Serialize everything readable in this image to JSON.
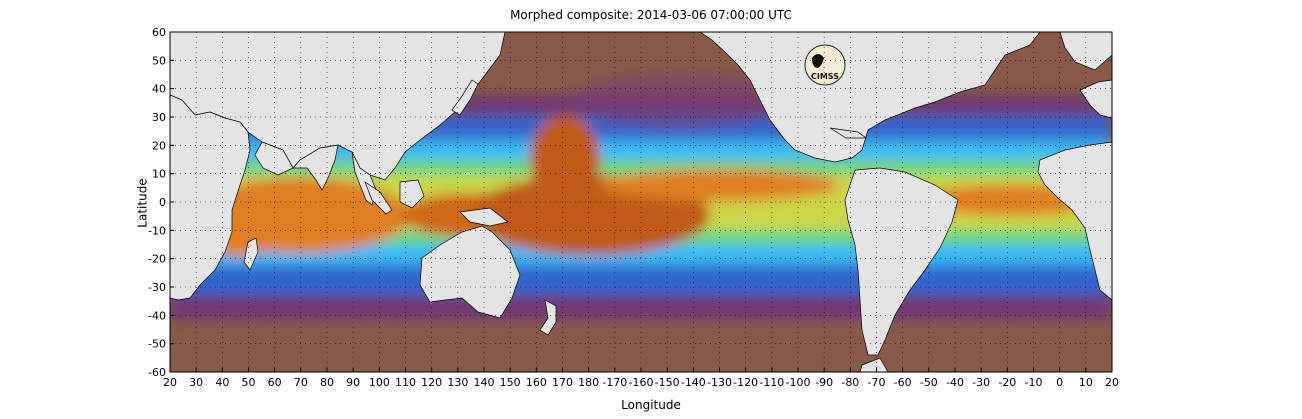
{
  "map": {
    "title": "Morphed composite: 2014-03-06 07:00:00 UTC",
    "xlabel": "Longitude",
    "ylabel": "Latitude",
    "logo_text": "CIMSS",
    "x_ticks": [
      "20",
      "30",
      "40",
      "50",
      "60",
      "70",
      "80",
      "90",
      "100",
      "110",
      "120",
      "130",
      "140",
      "150",
      "160",
      "170",
      "180",
      "-170",
      "-160",
      "-150",
      "-140",
      "-130",
      "-120",
      "-110",
      "-100",
      "-90",
      "-80",
      "-70",
      "-60",
      "-50",
      "-40",
      "-30",
      "-20",
      "-10",
      "0",
      "10",
      "20"
    ],
    "y_ticks": [
      "60",
      "50",
      "40",
      "30",
      "20",
      "10",
      "0",
      "-10",
      "-20",
      "-30",
      "-40",
      "-50",
      "-60"
    ],
    "colors": {
      "land": "#e4e4e4",
      "ocean_dry": "#8a5a48",
      "purple": "#6a2f82",
      "blue": "#2a6cd8",
      "cyan": "#3cc8ff",
      "green": "#78e066",
      "yellow": "#f0e040",
      "orange": "#e08020",
      "dark_orange": "#b04a10"
    }
  },
  "chart_data": {
    "type": "heatmap",
    "title": "Morphed composite: 2014-03-06 07:00:00 UTC",
    "xlabel": "Longitude",
    "ylabel": "Latitude",
    "xlim": [
      20,
      380
    ],
    "ylim": [
      -60,
      60
    ],
    "grid": true
  }
}
